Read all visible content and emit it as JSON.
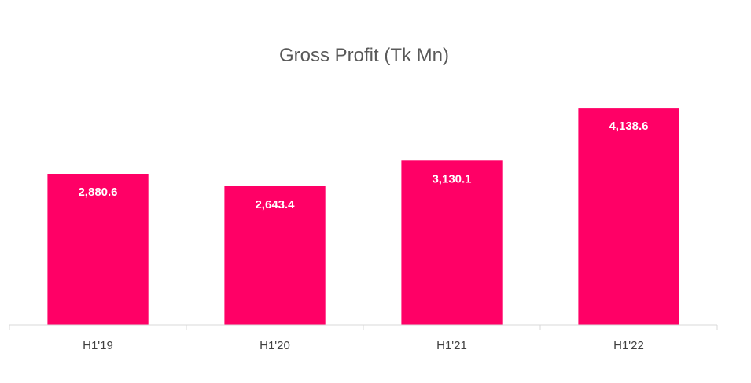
{
  "chart_data": {
    "type": "bar",
    "title": "Gross Profit (Tk Mn)",
    "categories": [
      "H1'19",
      "H1'20",
      "H1'21",
      "H1'22"
    ],
    "values": [
      2880.6,
      2643.4,
      3130.1,
      4138.6
    ],
    "data_labels": [
      "2,880.6",
      "2,643.4",
      "3,130.1",
      "4,138.6"
    ],
    "xlabel": "",
    "ylabel": "",
    "ylim": [
      0,
      4500
    ],
    "grid": false,
    "legend": "none",
    "bar_color": "#FF0066",
    "axis_color": "#D9D9D9"
  }
}
